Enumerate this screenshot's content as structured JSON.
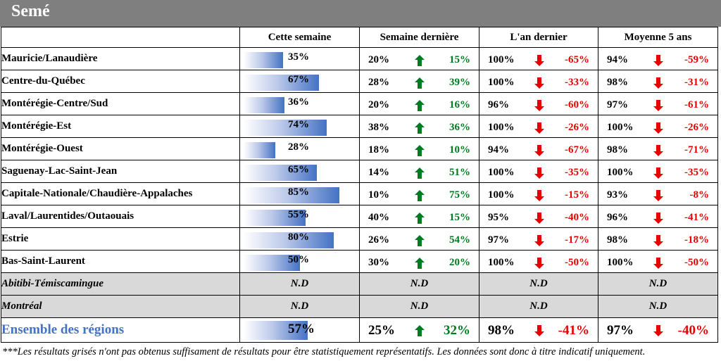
{
  "title": "Semé",
  "columns": {
    "this_week": "Cette semaine",
    "last_week": "Semaine dernière",
    "last_year": "L'an dernier",
    "avg5": "Moyenne 5 ans"
  },
  "rows": [
    {
      "region": "Mauricie/Lanaudière",
      "this_week": "35%",
      "progress": 35,
      "last_week": "20%",
      "lw_delta": "15%",
      "last_year": "100%",
      "ly_delta": "-65%",
      "avg5": "94%",
      "avg_delta": "-59%"
    },
    {
      "region": "Centre-du-Québec",
      "this_week": "67%",
      "progress": 67,
      "last_week": "28%",
      "lw_delta": "39%",
      "last_year": "100%",
      "ly_delta": "-33%",
      "avg5": "98%",
      "avg_delta": "-31%"
    },
    {
      "region": "Montérégie-Centre/Sud",
      "this_week": "36%",
      "progress": 36,
      "last_week": "20%",
      "lw_delta": "16%",
      "last_year": "96%",
      "ly_delta": "-60%",
      "avg5": "97%",
      "avg_delta": "-61%"
    },
    {
      "region": "Montérégie-Est",
      "this_week": "74%",
      "progress": 74,
      "last_week": "38%",
      "lw_delta": "36%",
      "last_year": "100%",
      "ly_delta": "-26%",
      "avg5": "100%",
      "avg_delta": "-26%"
    },
    {
      "region": "Montérégie-Ouest",
      "this_week": "28%",
      "progress": 28,
      "last_week": "18%",
      "lw_delta": "10%",
      "last_year": "94%",
      "ly_delta": "-67%",
      "avg5": "98%",
      "avg_delta": "-71%"
    },
    {
      "region": "Saguenay-Lac-Saint-Jean",
      "this_week": "65%",
      "progress": 65,
      "last_week": "14%",
      "lw_delta": "51%",
      "last_year": "100%",
      "ly_delta": "-35%",
      "avg5": "100%",
      "avg_delta": "-35%"
    },
    {
      "region": "Capitale-Nationale/Chaudière-Appalaches",
      "this_week": "85%",
      "progress": 85,
      "last_week": "10%",
      "lw_delta": "75%",
      "last_year": "100%",
      "ly_delta": "-15%",
      "avg5": "93%",
      "avg_delta": "-8%"
    },
    {
      "region": "Laval/Laurentides/Outaouais",
      "this_week": "55%",
      "progress": 55,
      "last_week": "40%",
      "lw_delta": "15%",
      "last_year": "95%",
      "ly_delta": "-40%",
      "avg5": "96%",
      "avg_delta": "-41%"
    },
    {
      "region": "Estrie",
      "this_week": "80%",
      "progress": 80,
      "last_week": "26%",
      "lw_delta": "54%",
      "last_year": "97%",
      "ly_delta": "-17%",
      "avg5": "98%",
      "avg_delta": "-18%"
    },
    {
      "region": "Bas-Saint-Laurent",
      "this_week": "50%",
      "progress": 50,
      "last_week": "30%",
      "lw_delta": "20%",
      "last_year": "100%",
      "ly_delta": "-50%",
      "avg5": "100%",
      "avg_delta": "-50%"
    }
  ],
  "grey_rows": [
    {
      "region": "Abitibi-Témiscamingue",
      "values": [
        "N.D",
        "N.D",
        "N.D",
        "N.D"
      ]
    },
    {
      "region": "Montréal",
      "values": [
        "N.D",
        "N.D",
        "N.D",
        "N.D"
      ]
    }
  ],
  "total": {
    "region": "Ensemble des régions",
    "this_week": "57%",
    "progress": 57,
    "last_week": "25%",
    "lw_delta": "32%",
    "last_year": "98%",
    "ly_delta": "-41%",
    "avg5": "97%",
    "avg_delta": "-40%"
  },
  "footnote": "***Les résultats grisés n'ont pas obtenus suffisament de résultats pour être statistiquement représentatifs. Les données sont donc à titre indicatif uniquement.",
  "icons": {
    "up": "arrow-up-green",
    "down": "arrow-down-red"
  },
  "colors": {
    "header_bg": "#7f7f7f",
    "bar": "#4472c4",
    "up": "#007a1e",
    "down": "#e60000",
    "grey_row": "#d9d9d9",
    "total_label": "#4472c4"
  }
}
